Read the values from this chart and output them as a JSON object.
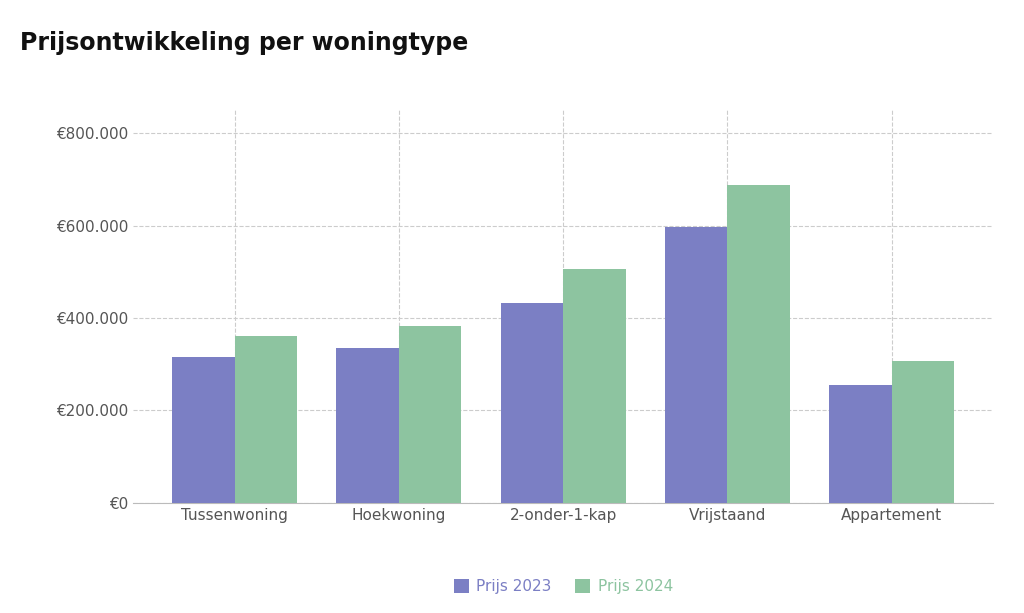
{
  "title": "Prijsontwikkeling per woningtype",
  "categories": [
    "Tussenwoning",
    "Hoekwoning",
    "2-onder-1-kap",
    "Vrijstaand",
    "Appartement"
  ],
  "values_2023": [
    315000,
    335000,
    432000,
    597000,
    255000
  ],
  "values_2024": [
    362000,
    382000,
    507000,
    688000,
    307000
  ],
  "color_2023": "#7B7FC4",
  "color_2024": "#8DC4A0",
  "legend_2023": "Prijs 2023",
  "legend_2024": "Prijs 2024",
  "ylim": [
    0,
    850000
  ],
  "yticks": [
    0,
    200000,
    400000,
    600000,
    800000
  ],
  "background_color": "#ffffff",
  "grid_color": "#cccccc",
  "title_fontsize": 17,
  "tick_fontsize": 11,
  "legend_fontsize": 11,
  "bar_width": 0.38
}
